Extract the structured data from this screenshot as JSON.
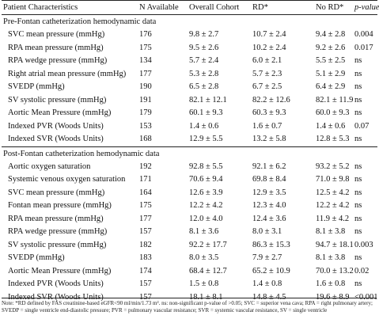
{
  "headers": [
    "Patient Characteristics",
    "N Available",
    "Overall Cohort",
    "RD*",
    "No RD*",
    "p-value"
  ],
  "pre_section": "Pre-Fontan catheterization hemodynamic data",
  "pre_rows": [
    [
      "SVC mean pressure (mmHg)",
      "176",
      "9.8 ± 2.7",
      "10.7 ± 2.4",
      "9.4 ± 2.8",
      "0.004"
    ],
    [
      "RPA mean pressure (mmHg)",
      "175",
      "9.5 ± 2.6",
      "10.2 ± 2.4",
      "9.2 ± 2.6",
      "0.017"
    ],
    [
      "RPA wedge pressure (mmHg)",
      "134",
      "5.7 ± 2.4",
      "6.0 ± 2.1",
      "5.5 ± 2.5",
      "ns"
    ],
    [
      "Right atrial mean pressure (mmHg)",
      "177",
      "5.3 ± 2.8",
      "5.7 ± 2.3",
      "5.1 ± 2.9",
      "ns"
    ],
    [
      "SVEDP (mmHg)",
      "190",
      "6.5 ± 2.8",
      "6.7 ± 2.5",
      "6.4 ± 2.9",
      "ns"
    ],
    [
      "SV systolic pressure (mmHg)",
      "191",
      "82.1 ± 12.1",
      "82.2 ± 12.6",
      "82.1 ± 11.9",
      "ns"
    ],
    [
      "Aortic Mean Pressure (mmHg)",
      "179",
      "60.1 ± 9.3",
      "60.3 ± 9.3",
      "60.0 ± 9.3",
      "ns"
    ],
    [
      "Indexed PVR (Woods Units)",
      "153",
      "1.4 ± 0.6",
      "1.6 ± 0.7",
      "1.4 ± 0.6",
      "0.07"
    ],
    [
      "Indexed SVR (Woods Units)",
      "168",
      "12.9 ± 5.5",
      "13.2 ± 5.8",
      "12.8 ± 5.3",
      "ns"
    ]
  ],
  "post_section": "Post-Fontan catheterization hemodynamic data",
  "post_rows": [
    [
      "Aortic oxygen saturation",
      "192",
      "92.8 ± 5.5",
      "92.1 ± 6.2",
      "93.2 ± 5.2",
      "ns"
    ],
    [
      "Systemic venous oxygen saturation",
      "171",
      "70.6 ± 9.4",
      "69.8 ± 8.4",
      "71.0 ± 9.8",
      "ns"
    ],
    [
      "SVC mean pressure (mmHg)",
      "164",
      "12.6 ± 3.9",
      "12.9 ± 3.5",
      "12.5 ± 4.2",
      "ns"
    ],
    [
      "Fontan mean pressure (mmHg)",
      "175",
      "12.2 ± 4.2",
      "12.3 ± 4.0",
      "12.2 ± 4.2",
      "ns"
    ],
    [
      "RPA mean pressure (mmHg)",
      "177",
      "12.0 ± 4.0",
      "12.4 ± 3.6",
      "11.9 ± 4.2",
      "ns"
    ],
    [
      "RPA wedge pressure (mmHg)",
      "157",
      "8.1 ± 3.6",
      "8.0 ± 3.1",
      "8.1 ± 3.8",
      "ns"
    ],
    [
      "SV systolic pressure (mmHg)",
      "182",
      "92.2 ± 17.7",
      "86.3 ± 15.3",
      "94.7 ± 18.1",
      "0.003"
    ],
    [
      "SVEDP (mmHg)",
      "183",
      "8.0 ± 3.5",
      "7.9 ± 2.7",
      "8.1 ± 3.8",
      "ns"
    ],
    [
      "Aortic Mean Pressure (mmHg)",
      "174",
      "68.4 ± 12.7",
      "65.2 ± 10.9",
      "70.0 ± 13.2",
      "0.02"
    ],
    [
      "Indexed PVR (Woods Units)",
      "157",
      "1.5 ± 0.8",
      "1.4 ± 0.8",
      "1.6 ± 0.8",
      "ns"
    ],
    [
      "Indexed SVR (Woods Units)",
      "157",
      "18.1 ± 8.1",
      "14.8 ± 4.5",
      "19.6 ± 8.9",
      "<0.001"
    ]
  ],
  "note": "Note: *RD defined by FAS creatinine-based eGFR<90 ml/min/1.73 m². ns: non-significant p-value of >0.05; SVC = superior vena cava; RPA = right pulmonary artery; SVEDP = single ventricle end-diastolic pressure; PVR = pulmonary vascular resistance; SVR = systemic vascular resistance, SV = single ventricle"
}
